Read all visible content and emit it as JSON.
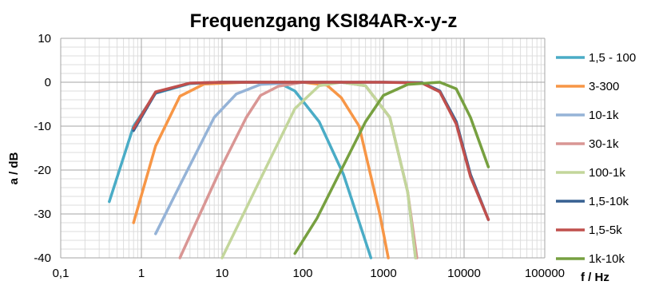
{
  "chart_data": {
    "type": "line",
    "title": "Frequenzgang KSI84AR-x-y-z",
    "xlabel": "f / Hz",
    "ylabel": "a / dB",
    "x_scale": "log",
    "xlim": [
      0.1,
      100000
    ],
    "ylim": [
      -40,
      10
    ],
    "x_ticks": [
      0.1,
      1,
      10,
      100,
      1000,
      10000,
      100000
    ],
    "x_tick_labels": [
      "0,1",
      "1",
      "10",
      "100",
      "1000",
      "10000",
      "100000"
    ],
    "y_ticks": [
      10,
      0,
      -10,
      -20,
      -30,
      -40
    ],
    "y_tick_labels": [
      "10",
      "0",
      "-10",
      "-20",
      "-30",
      "-40"
    ],
    "grid": true,
    "legend_position": "right",
    "series": [
      {
        "name": "1,5 - 100",
        "color": "#4AACC6",
        "x": [
          0.4,
          0.8,
          1.5,
          4,
          10,
          30,
          50,
          80,
          160,
          320,
          700
        ],
        "y": [
          -27.2,
          -10,
          -2.5,
          -0.3,
          0,
          0,
          -0.1,
          -2,
          -9,
          -21,
          -40
        ]
      },
      {
        "name": "3-300",
        "color": "#F79646",
        "x": [
          0.8,
          1.5,
          3,
          6,
          20,
          100,
          200,
          300,
          500,
          900,
          1150
        ],
        "y": [
          -32,
          -14.5,
          -3.2,
          -0.4,
          0,
          0,
          -0.7,
          -3.5,
          -10,
          -30,
          -40
        ]
      },
      {
        "name": "10-1k",
        "color": "#95B3D7",
        "x": [
          1.5,
          3.5,
          8,
          15,
          30,
          100,
          300,
          600,
          1200,
          2000,
          2500
        ],
        "y": [
          -34.5,
          -21,
          -8,
          -2.7,
          -0.5,
          0,
          0,
          -0.8,
          -8,
          -25,
          -40
        ]
      },
      {
        "name": "30-1k",
        "color": "#D99694",
        "x": [
          3,
          10,
          20,
          30,
          50,
          100,
          300,
          600,
          1200,
          2000,
          2600
        ],
        "y": [
          -40,
          -19,
          -8,
          -3,
          -0.9,
          0,
          0,
          -0.8,
          -8,
          -25,
          -40
        ]
      },
      {
        "name": "100-1k",
        "color": "#C3D69B",
        "x": [
          10,
          30,
          80,
          160,
          300,
          600,
          1200,
          2000,
          2500
        ],
        "y": [
          -40,
          -22,
          -6,
          -0.8,
          0,
          -0.8,
          -8,
          -25,
          -40
        ]
      },
      {
        "name": "1,5-10k",
        "color": "#376092",
        "x": [
          0.8,
          1.5,
          4,
          10,
          100,
          1000,
          3000,
          5000,
          8000,
          12000,
          20000
        ],
        "y": [
          -11,
          -2.4,
          -0.2,
          0,
          0,
          0,
          -0.1,
          -2,
          -9,
          -21,
          -31.3
        ]
      },
      {
        "name": "1,5-5k",
        "color": "#C0504D",
        "x": [
          0.8,
          1.5,
          4,
          10,
          100,
          1000,
          3000,
          5000,
          8000,
          12000,
          20000
        ],
        "y": [
          -10.5,
          -2.2,
          -0.2,
          0,
          0,
          0,
          -0.2,
          -2.2,
          -9.5,
          -21.5,
          -31.3
        ]
      },
      {
        "name": "1k-10k",
        "color": "#77A040",
        "x": [
          80,
          150,
          300,
          600,
          1000,
          2000,
          5000,
          8000,
          12000,
          20000
        ],
        "y": [
          -39,
          -31,
          -20,
          -9,
          -3,
          -0.5,
          0,
          -1.5,
          -8,
          -19.3
        ]
      }
    ]
  }
}
